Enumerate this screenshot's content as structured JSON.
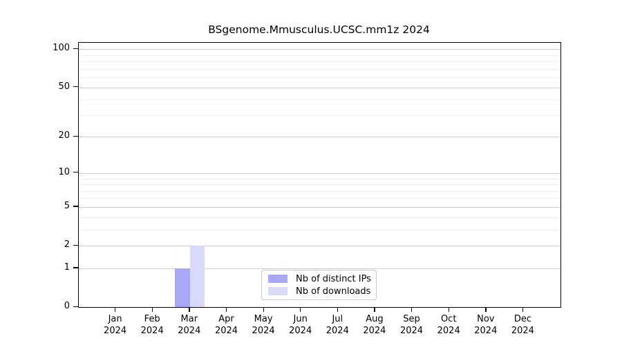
{
  "title": "BSgenome.Mmusculus.UCSC.mm1z 2024",
  "chart_data": {
    "type": "bar",
    "title": "BSgenome.Mmusculus.UCSC.mm1z 2024",
    "categories": [
      "Jan",
      "Feb",
      "Mar",
      "Apr",
      "May",
      "Jun",
      "Jul",
      "Aug",
      "Sep",
      "Oct",
      "Nov",
      "Dec"
    ],
    "year_label": "2024",
    "series": [
      {
        "name": "Nb of distinct IPs",
        "color": "#a8a8f8",
        "values": [
          0,
          0,
          1,
          0,
          0,
          0,
          0,
          0,
          0,
          0,
          0,
          0
        ]
      },
      {
        "name": "Nb of downloads",
        "color": "#d9d9f9",
        "values": [
          0,
          0,
          2,
          0,
          0,
          0,
          0,
          0,
          0,
          0,
          0,
          0
        ]
      }
    ],
    "xlabel": "",
    "ylabel": "",
    "y_scale": "log10(value+1)",
    "ylim": [
      0,
      112
    ],
    "y_ticks": [
      0,
      1,
      2,
      5,
      10,
      20,
      50,
      100
    ],
    "minor_gridlines": [
      3,
      4,
      6,
      7,
      8,
      9,
      30,
      40,
      60,
      70,
      80,
      90
    ],
    "grid": true,
    "legend_position": "bottom-center"
  },
  "colors": {
    "axis": "#000000",
    "major_grid": "#cccccc",
    "minor_grid": "#f0f0f0",
    "background": "#ffffff"
  }
}
